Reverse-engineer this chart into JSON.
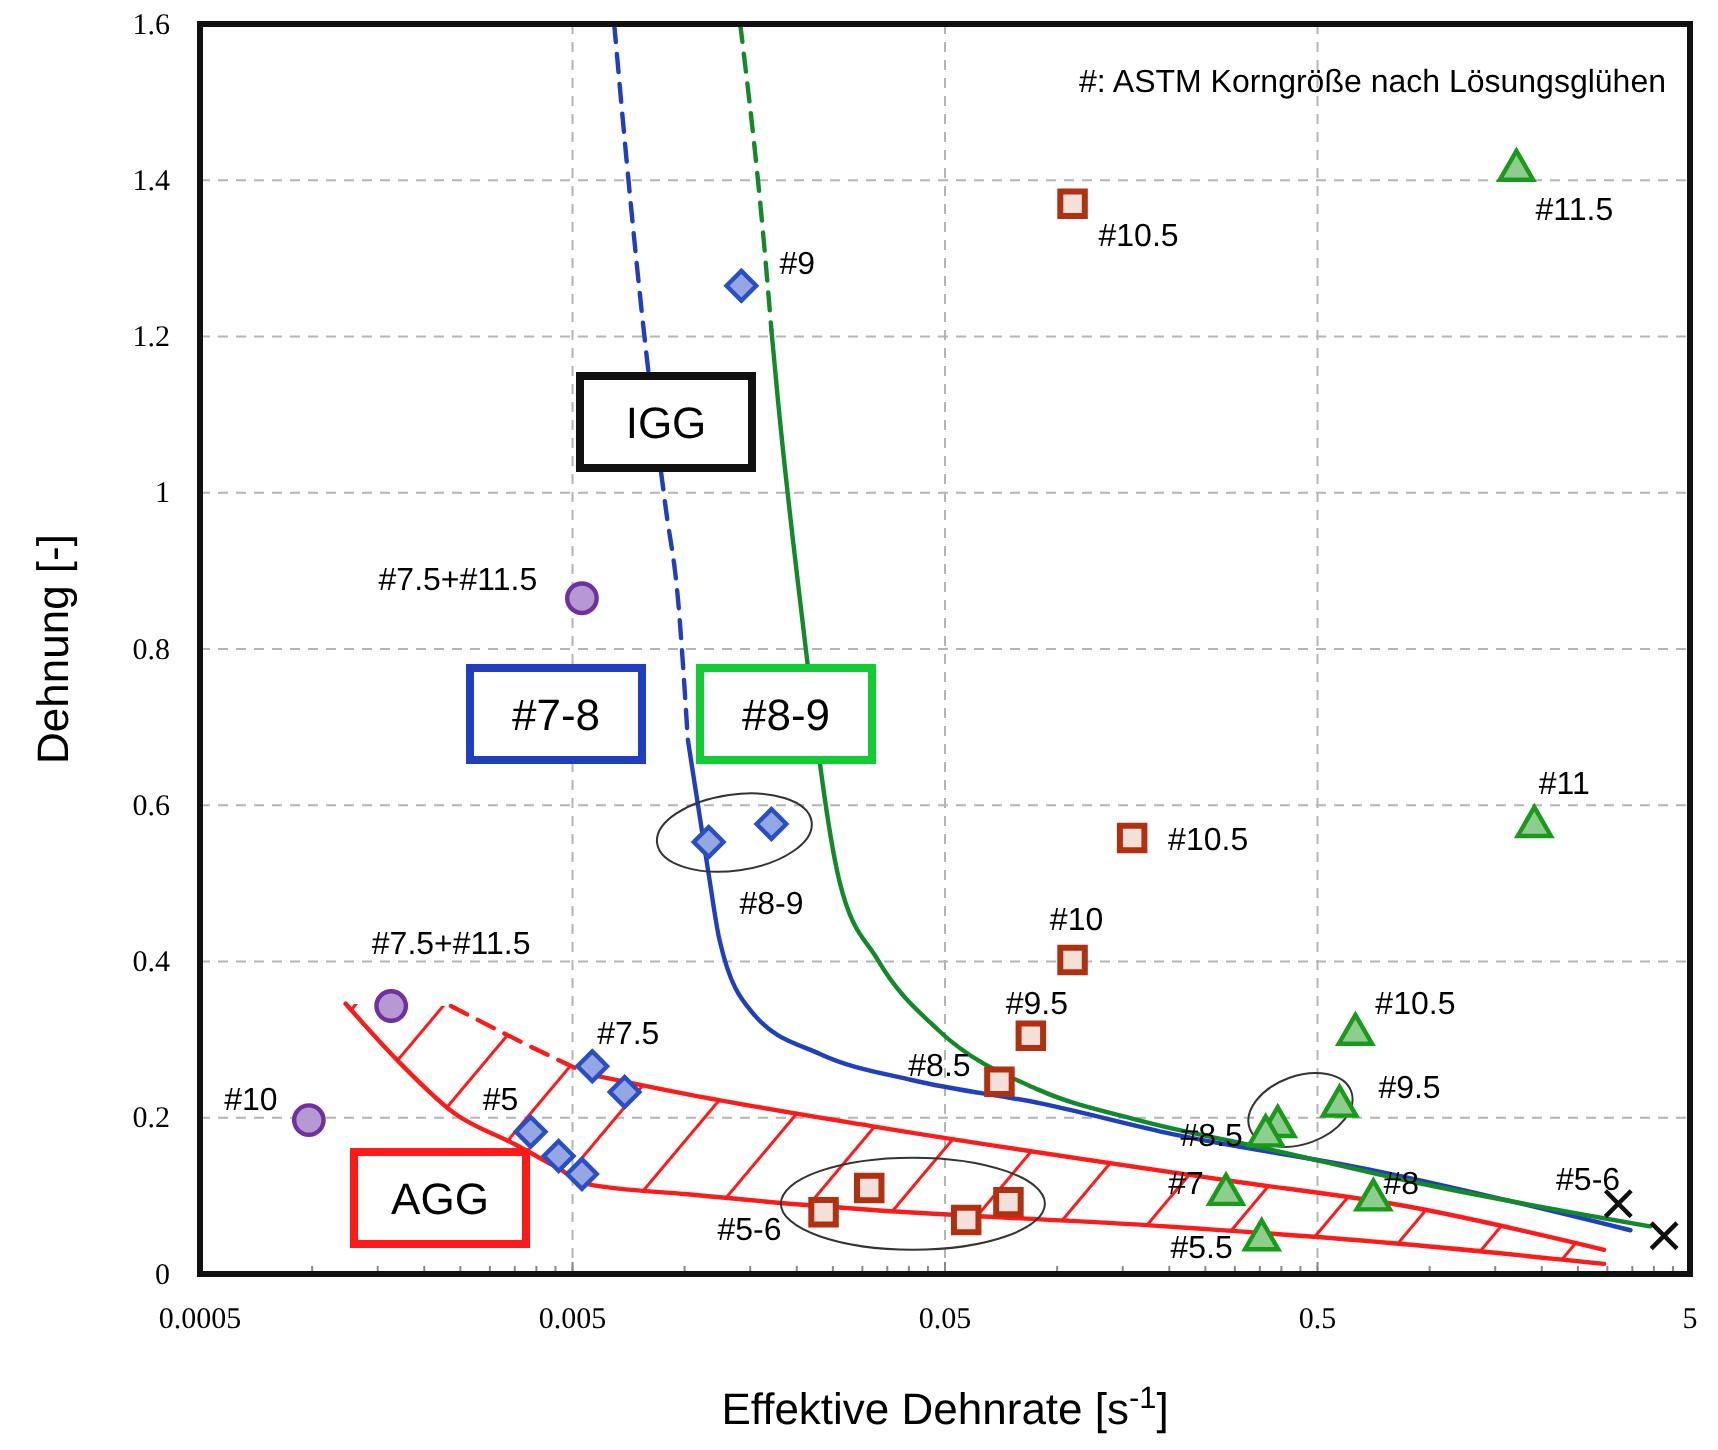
{
  "chart_data": {
    "type": "scatter",
    "xlabel": "Effektive Dehnrate [s$^{-1}$]",
    "ylabel": "Dehnung [-]",
    "log": "x",
    "grid": true,
    "xlim": [
      0.0005,
      5
    ],
    "ylim": [
      0,
      1.6
    ],
    "xticks": [
      0.0005,
      {
        "value": 0.001,
        "label": null
      },
      {
        "value": 0.0015,
        "label": null
      },
      {
        "value": 0.002,
        "label": null
      },
      {
        "value": 0.0025,
        "label": null
      },
      {
        "value": 0.003,
        "label": null
      },
      {
        "value": 0.0035,
        "label": null
      },
      {
        "value": 0.004,
        "label": null
      },
      {
        "value": 0.0045,
        "label": null
      },
      0.005,
      {
        "value": 0.01,
        "label": null
      },
      {
        "value": 0.015,
        "label": null
      },
      {
        "value": 0.02,
        "label": null
      },
      {
        "value": 0.025,
        "label": null
      },
      {
        "value": 0.03,
        "label": null
      },
      {
        "value": 0.035,
        "label": null
      },
      {
        "value": 0.04,
        "label": null
      },
      {
        "value": 0.045,
        "label": null
      },
      0.05,
      {
        "value": 0.1,
        "label": null
      },
      {
        "value": 0.15,
        "label": null
      },
      {
        "value": 0.2,
        "label": null
      },
      {
        "value": 0.25,
        "label": null
      },
      {
        "value": 0.3,
        "label": null
      },
      {
        "value": 0.35,
        "label": null
      },
      {
        "value": 0.4,
        "label": null
      },
      {
        "value": 0.45,
        "label": null
      },
      0.5,
      {
        "value": 1,
        "label": null
      },
      {
        "value": 1.5,
        "label": null
      },
      {
        "value": 2,
        "label": null
      },
      {
        "value": 2.5,
        "label": null
      },
      {
        "value": 3,
        "label": null
      },
      {
        "value": 3.5,
        "label": null
      },
      {
        "value": 4,
        "label": null
      },
      {
        "value": 4.5,
        "label": null
      },
      5
    ],
    "yticks": [
      0,
      0.2,
      0.4,
      0.6,
      0.8,
      1,
      1.2,
      1.4,
      1.6
    ],
    "series": [
      {
        "type": "line",
        "color": "#1f3fbf",
        "line_style": "dashed",
        "x": [
          0.00647,
          0.00715,
          0.0078,
          0.0089,
          0.0096,
          0.0102
        ],
        "values": [
          1.6,
          1.375,
          1.2,
          0.98,
          0.863,
          0.684
        ]
      },
      {
        "type": "line",
        "color": "#1f3fbf",
        "line_style": "solid",
        "x": [
          0.0102,
          0.0116,
          0.0124,
          0.0153,
          0.023,
          0.041,
          0.091,
          0.204,
          0.7,
          3.46
        ],
        "values": [
          0.684,
          0.512,
          0.428,
          0.333,
          0.282,
          0.248,
          0.218,
          0.179,
          0.133,
          0.056
        ]
      },
      {
        "type": "line",
        "color": "#128a2a",
        "line_style": "dashed",
        "x": [
          0.0141,
          0.0163,
          0.0171
        ],
        "values": [
          1.6,
          1.324,
          1.208
        ]
      },
      {
        "type": "line",
        "color": "#128a2a",
        "line_style": "solid",
        "x": [
          0.0171,
          0.0178,
          0.0204,
          0.023,
          0.026,
          0.033,
          0.048,
          0.089,
          0.165,
          0.377,
          0.86,
          3.91
        ],
        "values": [
          1.208,
          1.119,
          0.863,
          null,
          0.504,
          0.402,
          0.312,
          0.236,
          0.197,
          0.159,
          0.12,
          0.061
        ]
      },
      {
        "type": "line",
        "color": "#ff1a1a",
        "line_style": "solid",
        "x": [
          0.00123,
          0.00173,
          0.00242,
          0.0035,
          0.00448,
          0.0055,
          0.0102,
          0.023,
          0.032,
          0.196,
          0.86,
          2.94
        ],
        "values": [
          0.346,
          0.269,
          0.205,
          0.166,
          0.138,
          0.115,
          0.102,
          0.087,
          0.082,
          0.061,
          0.038,
          0.013
        ]
      },
      {
        "type": "line",
        "color": "#ff1a1a",
        "line_style": "dashed",
        "x": [
          0.00236,
          0.00337,
          0.0055
        ],
        "values": [
          0.343,
          0.305,
          0.256
        ]
      },
      {
        "type": "line",
        "color": "#ff1a1a",
        "line_style": "solid",
        "x": [
          0.0055,
          0.0102,
          0.032,
          0.284,
          0.86,
          2.94
        ],
        "values": [
          0.256,
          0.23,
          0.189,
          0.12,
          0.087,
          0.031
        ]
      },
      {
        "type": "scatter",
        "color": "#2a4fc4",
        "marker": "diamond",
        "x": [
          0.0142,
          0.0116,
          0.0171,
          0.00565,
          0.0069,
          0.00386,
          0.00459,
          0.0053
        ],
        "values": [
          1.265,
          0.553,
          0.576,
          0.266,
          0.233,
          0.182,
          0.151,
          0.128
        ]
      },
      {
        "type": "scatter",
        "color": "#7030a0",
        "marker": "circle",
        "x": [
          0.0053,
          0.00163,
          0.00098
        ],
        "values": [
          0.865,
          0.343,
          0.197
        ]
      },
      {
        "type": "scatter",
        "color": "#b03010",
        "marker": "square",
        "x": [
          0.11,
          0.159,
          0.11,
          0.085,
          0.07,
          0.0236,
          0.0313,
          0.057,
          0.074
        ],
        "values": [
          1.37,
          0.558,
          0.402,
          0.305,
          0.246,
          0.079,
          0.11,
          0.069,
          0.092
        ]
      },
      {
        "type": "scatter",
        "color": "#1a9a1a",
        "marker": "triangle",
        "x": [
          1.71,
          1.91,
          0.632,
          0.573,
          0.391,
          0.363,
          0.284,
          0.706,
          0.354
        ],
        "values": [
          1.413,
          0.573,
          0.307,
          0.215,
          0.189,
          0.177,
          0.102,
          0.095,
          0.044
        ]
      },
      {
        "type": "scatter",
        "color": "#111111",
        "marker": "cross",
        "x": [
          3.21,
          4.26
        ],
        "values": [
          0.09,
          0.049
        ]
      }
    ],
    "annotations": [
      "IGG",
      "#7-8",
      "#8-9",
      "AGG",
      "#: ASTM Korngröße nach Lösungsglühen",
      {
        "text": "#9",
        "x": 0.0142,
        "y": 1.265
      },
      {
        "text": "#10.5",
        "x": 0.11,
        "y": 1.37
      },
      {
        "text": "#11.5",
        "x": 1.71,
        "y": 1.413
      },
      {
        "text": "#7.5+#11.5",
        "x": 0.0053,
        "y": 0.865
      },
      {
        "text": "#8-9",
        "x": 0.0171,
        "y": 0.576
      },
      {
        "text": "#7.5+#11.5",
        "x": 0.00163,
        "y": 0.343
      },
      {
        "text": "#7.5",
        "x": 0.00565,
        "y": 0.266
      },
      {
        "text": "#5",
        "x": 0.00386,
        "y": 0.182
      },
      {
        "text": "#10",
        "x": 0.00098,
        "y": 0.197
      },
      {
        "text": "#5-6",
        "x": 0.0236,
        "y": 0.079
      },
      {
        "text": "#10.5",
        "x": 0.159,
        "y": 0.558
      },
      {
        "text": "#10",
        "x": 0.11,
        "y": 0.402
      },
      {
        "text": "#9.5",
        "x": 0.085,
        "y": 0.305
      },
      {
        "text": "#8.5",
        "x": 0.07,
        "y": 0.246
      },
      {
        "text": "#11",
        "x": 1.91,
        "y": 0.573
      },
      {
        "text": "#10.5",
        "x": 0.632,
        "y": 0.307
      },
      {
        "text": "#9.5",
        "x": 0.573,
        "y": 0.215
      },
      {
        "text": "#8.5",
        "x": 0.363,
        "y": 0.177
      },
      {
        "text": "#7",
        "x": 0.284,
        "y": 0.102
      },
      {
        "text": "#8",
        "x": 0.706,
        "y": 0.095
      },
      {
        "text": "#5.5",
        "x": 0.354,
        "y": 0.044
      },
      {
        "text": "#5-6",
        "x": 2.94,
        "y": 0.013
      }
    ]
  }
}
